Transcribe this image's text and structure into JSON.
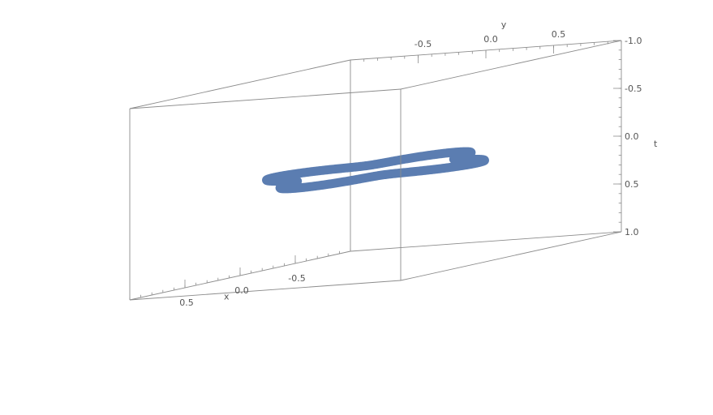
{
  "chart_data": {
    "type": "line3d",
    "title": "",
    "axes": {
      "x": {
        "label": "x",
        "range": [
          -1,
          1
        ],
        "ticks": [
          {
            "value": 0.5,
            "label": "0.5"
          },
          {
            "value": 0.0,
            "label": "0.0"
          },
          {
            "value": -0.5,
            "label": "-0.5"
          }
        ]
      },
      "y": {
        "label": "y",
        "range": [
          -1,
          1
        ],
        "ticks": [
          {
            "value": 0.5,
            "label": "0.5"
          },
          {
            "value": 0.0,
            "label": "0.0"
          },
          {
            "value": -0.5,
            "label": "-0.5"
          }
        ]
      },
      "z": {
        "label": "t",
        "range": [
          -1,
          1
        ],
        "ticks": [
          {
            "value": -1.0,
            "label": "-1.0"
          },
          {
            "value": -0.5,
            "label": "-0.5"
          },
          {
            "value": 0.0,
            "label": "0.0"
          },
          {
            "value": 0.5,
            "label": "0.5"
          },
          {
            "value": 1.0,
            "label": "1.0"
          }
        ]
      }
    },
    "series": [
      {
        "style": "thick-tube",
        "color": "#5b7db1",
        "curve": "four-lobed closed loop, r(θ) = 0.6 + 0.15·cos(4θ), lying in the plane t = 0"
      }
    ],
    "box": true,
    "grid": false
  }
}
